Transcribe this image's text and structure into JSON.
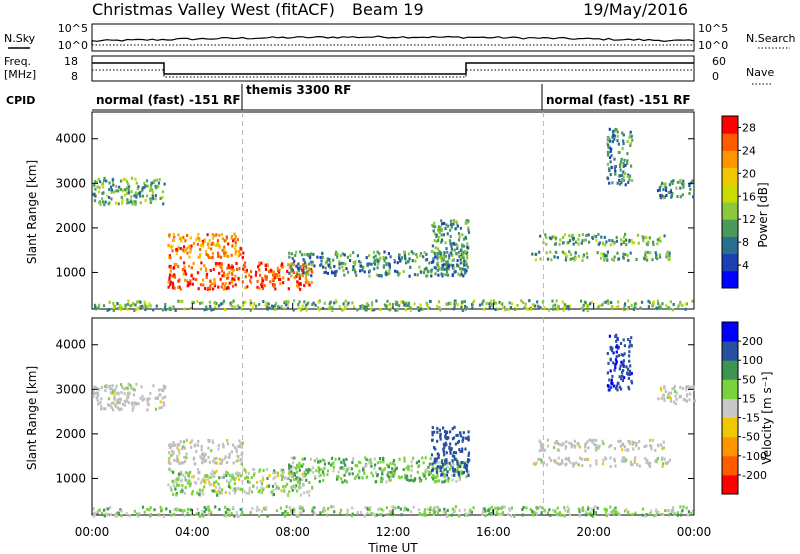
{
  "header": {
    "station": "Christmas Valley West (fitACF)",
    "beam": "Beam 19",
    "date": "19/May/2016"
  },
  "summary": {
    "nsky_label": "N.Sky",
    "nsearch_label": "N.Search",
    "noise_ticks": [
      "10^5",
      "10^0"
    ],
    "freq_label_line1": "Freq.",
    "freq_label_line2": "[MHz]",
    "freq_ticks": [
      "18",
      "8"
    ],
    "nave_label": "Nave",
    "nave_ticks": [
      "60",
      "0"
    ],
    "cpid_label": "CPID",
    "cpid_segments": [
      {
        "label": "normal (fast) -151 RF",
        "start_hour": 0,
        "end_hour": 6
      },
      {
        "label": "themis 3300 RF",
        "start_hour": 6,
        "end_hour": 18
      },
      {
        "label": "normal (fast) -151 RF",
        "start_hour": 18,
        "end_hour": 24
      }
    ]
  },
  "axes": {
    "xlabel": "Time UT",
    "x_ticks": [
      "00:00",
      "04:00",
      "08:00",
      "12:00",
      "16:00",
      "20:00",
      "00:00"
    ],
    "ylabel": "Slant Range [km]",
    "y_ticks": [
      "1000",
      "2000",
      "3000",
      "4000"
    ]
  },
  "chart_data": [
    {
      "type": "heatmap",
      "quantity": "power",
      "xlabel": "Time UT",
      "ylabel": "Slant Range [km]",
      "xlim_hours": [
        0,
        24
      ],
      "ylim_km": [
        180,
        4600
      ],
      "colorbar_label": "Power [dB]",
      "colorbar_ticks": [
        4,
        8,
        12,
        16,
        20,
        24,
        28
      ],
      "colorbar_range": [
        0,
        30
      ],
      "colors": [
        "#0000ff",
        "#1e3fb4",
        "#2a6f8f",
        "#4a9a5a",
        "#8cc83c",
        "#c8dc00",
        "#f0c800",
        "#ff9600",
        "#ff5a00",
        "#ff0000"
      ],
      "echo_regions": [
        {
          "t0": 0.0,
          "t1": 2.9,
          "r0": 2550,
          "r1": 3150,
          "level": 11
        },
        {
          "t0": 3.0,
          "t1": 6.0,
          "r0": 1350,
          "r1": 1900,
          "level": 23
        },
        {
          "t0": 3.0,
          "t1": 8.8,
          "r0": 650,
          "r1": 1250,
          "level": 26
        },
        {
          "t0": 7.8,
          "t1": 15.0,
          "r0": 950,
          "r1": 1500,
          "level": 9
        },
        {
          "t0": 13.5,
          "t1": 15.0,
          "r0": 1100,
          "r1": 2200,
          "level": 10
        },
        {
          "t0": 17.8,
          "t1": 22.8,
          "r0": 1650,
          "r1": 1900,
          "level": 12
        },
        {
          "t0": 17.5,
          "t1": 23.0,
          "r0": 1300,
          "r1": 1500,
          "level": 11
        },
        {
          "t0": 22.5,
          "t1": 24.0,
          "r0": 2700,
          "r1": 3100,
          "level": 9
        },
        {
          "t0": 20.5,
          "t1": 21.5,
          "r0": 3000,
          "r1": 4250,
          "level": 9
        },
        {
          "t0": 0.0,
          "t1": 24.0,
          "r0": 180,
          "r1": 400,
          "level": 12
        }
      ]
    },
    {
      "type": "heatmap",
      "quantity": "velocity",
      "xlabel": "Time UT",
      "ylabel": "Slant Range [km]",
      "xlim_hours": [
        0,
        24
      ],
      "ylim_km": [
        180,
        4600
      ],
      "colorbar_label": "Velocity [m s⁻¹]",
      "colorbar_ticks": [
        -200,
        -100,
        -50,
        -15,
        15,
        50,
        100,
        200
      ],
      "colors": [
        "#ff0000",
        "#ff5a00",
        "#ff9600",
        "#f0c800",
        "#c8c8c8",
        "#7ad23c",
        "#3c9650",
        "#2850a0",
        "#0000ff"
      ],
      "ground_scatter_color": "#bebebe",
      "echo_regions": [
        {
          "t0": 0.0,
          "t1": 2.9,
          "r0": 2550,
          "r1": 3150,
          "v": 0
        },
        {
          "t0": 3.0,
          "t1": 6.0,
          "r0": 1350,
          "r1": 1900,
          "v": 0
        },
        {
          "t0": 3.0,
          "t1": 8.8,
          "r0": 650,
          "r1": 1250,
          "v": 20
        },
        {
          "t0": 7.8,
          "t1": 15.0,
          "r0": 950,
          "r1": 1500,
          "v": 40
        },
        {
          "t0": 13.5,
          "t1": 15.0,
          "r0": 1100,
          "r1": 2200,
          "v": 150
        },
        {
          "t0": 17.8,
          "t1": 22.8,
          "r0": 1650,
          "r1": 1900,
          "v": 0
        },
        {
          "t0": 17.5,
          "t1": 23.0,
          "r0": 1300,
          "r1": 1500,
          "v": 0
        },
        {
          "t0": 22.5,
          "t1": 24.0,
          "r0": 2700,
          "r1": 3100,
          "v": 0
        },
        {
          "t0": 20.5,
          "t1": 21.5,
          "r0": 3000,
          "r1": 4250,
          "v": 180
        },
        {
          "t0": 0.0,
          "t1": 24.0,
          "r0": 180,
          "r1": 400,
          "v": 30
        }
      ]
    }
  ]
}
